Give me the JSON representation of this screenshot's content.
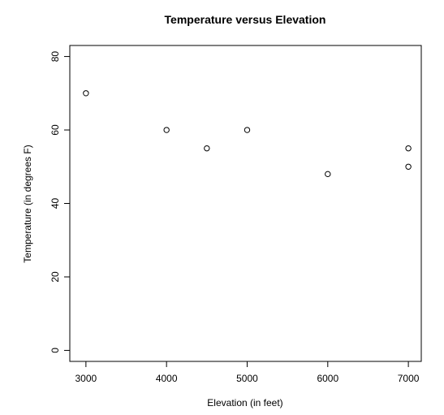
{
  "chart_data": {
    "type": "scatter",
    "title": "Temperature versus Elevation",
    "xlabel": "Elevation (in feet)",
    "ylabel": "Temperature (in degrees F)",
    "xlim": [
      2800,
      7160
    ],
    "ylim": [
      -3,
      83
    ],
    "x_ticks": [
      3000,
      4000,
      5000,
      6000,
      7000
    ],
    "y_ticks": [
      0,
      20,
      40,
      60,
      80
    ],
    "grid": false,
    "legend": "none",
    "points": [
      {
        "x": 3000,
        "y": 70
      },
      {
        "x": 4000,
        "y": 60
      },
      {
        "x": 4500,
        "y": 55
      },
      {
        "x": 5000,
        "y": 60
      },
      {
        "x": 6000,
        "y": 48
      },
      {
        "x": 7000,
        "y": 55
      },
      {
        "x": 7000,
        "y": 50
      }
    ],
    "colors": {
      "marker": "#000000",
      "frame": "#000000",
      "background": "#ffffff"
    }
  }
}
